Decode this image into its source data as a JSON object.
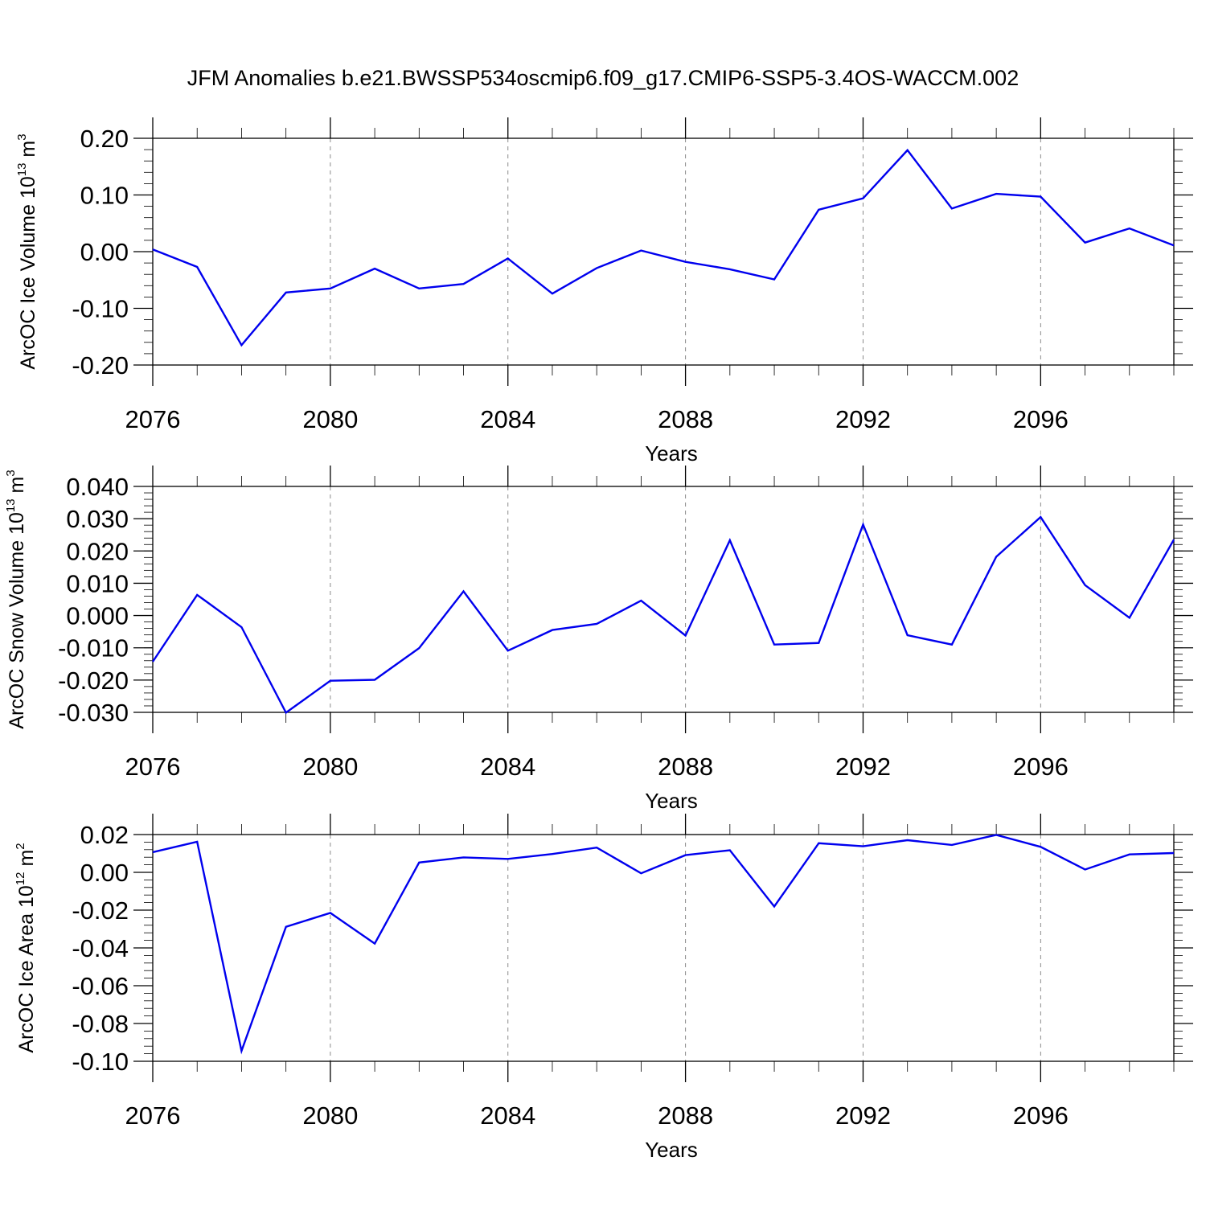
{
  "figure_title": "JFM Anomalies b.e21.BWSSP534oscmip6.f09_g17.CMIP6-SSP5-3.4OS-WACCM.002",
  "line_color": "#0000ee",
  "chart_data": [
    {
      "type": "line",
      "ylabel": {
        "main": "ArcOC Ice Volume 10",
        "exp": "13",
        "unit": " m",
        "unit_exp": "3"
      },
      "xlabel": "Years",
      "xlim": [
        2076,
        2099
      ],
      "ylim": [
        -0.2,
        0.2
      ],
      "x_ticks": [
        2076,
        2080,
        2084,
        2088,
        2092,
        2096
      ],
      "x_tick_labels": [
        "2076",
        "2080",
        "2084",
        "2088",
        "2092",
        "2096"
      ],
      "y_ticks": [
        -0.2,
        -0.1,
        0.0,
        0.1,
        0.2
      ],
      "y_tick_labels": [
        "-0.20",
        "-0.10",
        "0.00",
        "0.10",
        "0.20"
      ],
      "y_minor_step": 0.02,
      "x": [
        2076,
        2077,
        2078,
        2079,
        2080,
        2081,
        2082,
        2083,
        2084,
        2085,
        2086,
        2087,
        2088,
        2089,
        2090,
        2091,
        2092,
        2093,
        2094,
        2095,
        2096,
        2097,
        2098,
        2099
      ],
      "values": [
        0.004,
        -0.027,
        -0.165,
        -0.072,
        -0.065,
        -0.03,
        -0.065,
        -0.057,
        -0.012,
        -0.074,
        -0.029,
        0.002,
        -0.018,
        -0.031,
        -0.049,
        0.074,
        0.094,
        0.179,
        0.076,
        0.102,
        0.097,
        0.016,
        0.041,
        0.011
      ]
    },
    {
      "type": "line",
      "ylabel": {
        "main": "ArcOC Snow Volume 10",
        "exp": "13",
        "unit": " m",
        "unit_exp": "3"
      },
      "xlabel": "Years",
      "xlim": [
        2076,
        2099
      ],
      "ylim": [
        -0.03,
        0.04
      ],
      "x_ticks": [
        2076,
        2080,
        2084,
        2088,
        2092,
        2096
      ],
      "x_tick_labels": [
        "2076",
        "2080",
        "2084",
        "2088",
        "2092",
        "2096"
      ],
      "y_ticks": [
        -0.03,
        -0.02,
        -0.01,
        0.0,
        0.01,
        0.02,
        0.03,
        0.04
      ],
      "y_tick_labels": [
        "-0.030",
        "-0.020",
        "-0.010",
        "0.000",
        "0.010",
        "0.020",
        "0.030",
        "0.040"
      ],
      "y_minor_step": 0.002,
      "x": [
        2076,
        2077,
        2078,
        2079,
        2080,
        2081,
        2082,
        2083,
        2084,
        2085,
        2086,
        2087,
        2088,
        2089,
        2090,
        2091,
        2092,
        2093,
        2094,
        2095,
        2096,
        2097,
        2098,
        2099
      ],
      "values": [
        -0.0143,
        0.0064,
        -0.0036,
        -0.0301,
        -0.0202,
        -0.0199,
        -0.0101,
        0.0075,
        -0.0109,
        -0.0045,
        -0.0026,
        0.0046,
        -0.0062,
        0.0233,
        -0.009,
        -0.0085,
        0.0282,
        -0.0061,
        -0.009,
        0.0182,
        0.0305,
        0.0094,
        -0.0007,
        0.0235
      ]
    },
    {
      "type": "line",
      "ylabel": {
        "main": "ArcOC Ice Area 10",
        "exp": "12",
        "unit": " m",
        "unit_exp": "2"
      },
      "xlabel": "Years",
      "xlim": [
        2076,
        2099
      ],
      "ylim": [
        -0.1,
        0.02
      ],
      "x_ticks": [
        2076,
        2080,
        2084,
        2088,
        2092,
        2096
      ],
      "x_tick_labels": [
        "2076",
        "2080",
        "2084",
        "2088",
        "2092",
        "2096"
      ],
      "y_ticks": [
        -0.1,
        -0.08,
        -0.06,
        -0.04,
        -0.02,
        0.0,
        0.02
      ],
      "y_tick_labels": [
        "-0.10",
        "-0.08",
        "-0.06",
        "-0.04",
        "-0.02",
        "0.00",
        "0.02"
      ],
      "y_minor_step": 0.004,
      "x": [
        2076,
        2077,
        2078,
        2079,
        2080,
        2081,
        2082,
        2083,
        2084,
        2085,
        2086,
        2087,
        2088,
        2089,
        2090,
        2091,
        2092,
        2093,
        2094,
        2095,
        2096,
        2097,
        2098,
        2099
      ],
      "values": [
        0.0107,
        0.0162,
        -0.0945,
        -0.0288,
        -0.0215,
        -0.0377,
        0.0052,
        0.0079,
        0.0071,
        0.0097,
        0.0131,
        -0.0005,
        0.0091,
        0.0117,
        -0.0181,
        0.0154,
        0.0138,
        0.017,
        0.0145,
        0.0198,
        0.0135,
        0.0015,
        0.0095,
        0.0102
      ]
    }
  ]
}
